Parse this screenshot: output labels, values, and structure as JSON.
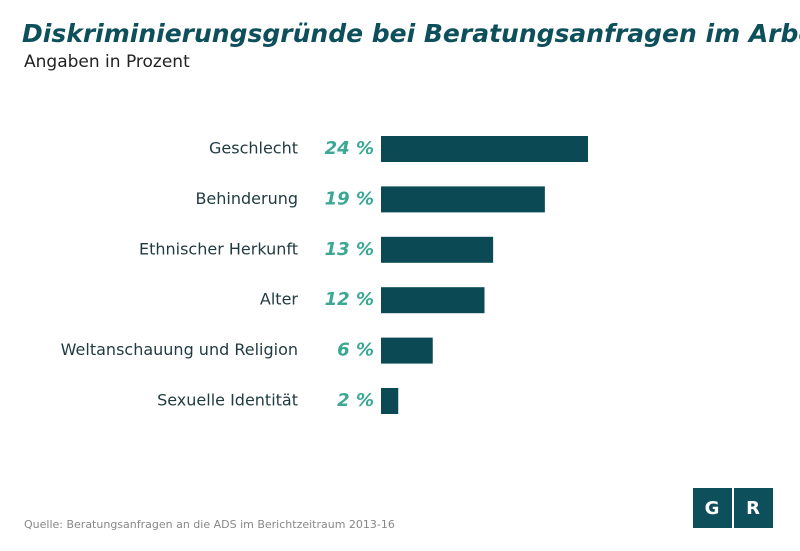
{
  "chart_data": {
    "type": "bar",
    "orientation": "horizontal",
    "title": "Diskriminierungsgründe bei Beratungsanfragen im Arbeitsrecht",
    "subtitle": "Angaben in Prozent",
    "categories": [
      "Geschlecht",
      "Behinderung",
      "Ethnischer Herkunft",
      "Alter",
      "Weltanschauung und Religion",
      "Sexuelle Identität"
    ],
    "values": [
      24,
      19,
      13,
      12,
      6,
      2
    ],
    "value_labels": [
      "24 %",
      "19 %",
      "13 %",
      "12 %",
      "6 %",
      "2 %"
    ],
    "color": "#0b4a55",
    "source": "Quelle: Beratungsanfragen an die ADS im Berichtzeitraum 2013-16",
    "logo": [
      "G",
      "R"
    ]
  }
}
